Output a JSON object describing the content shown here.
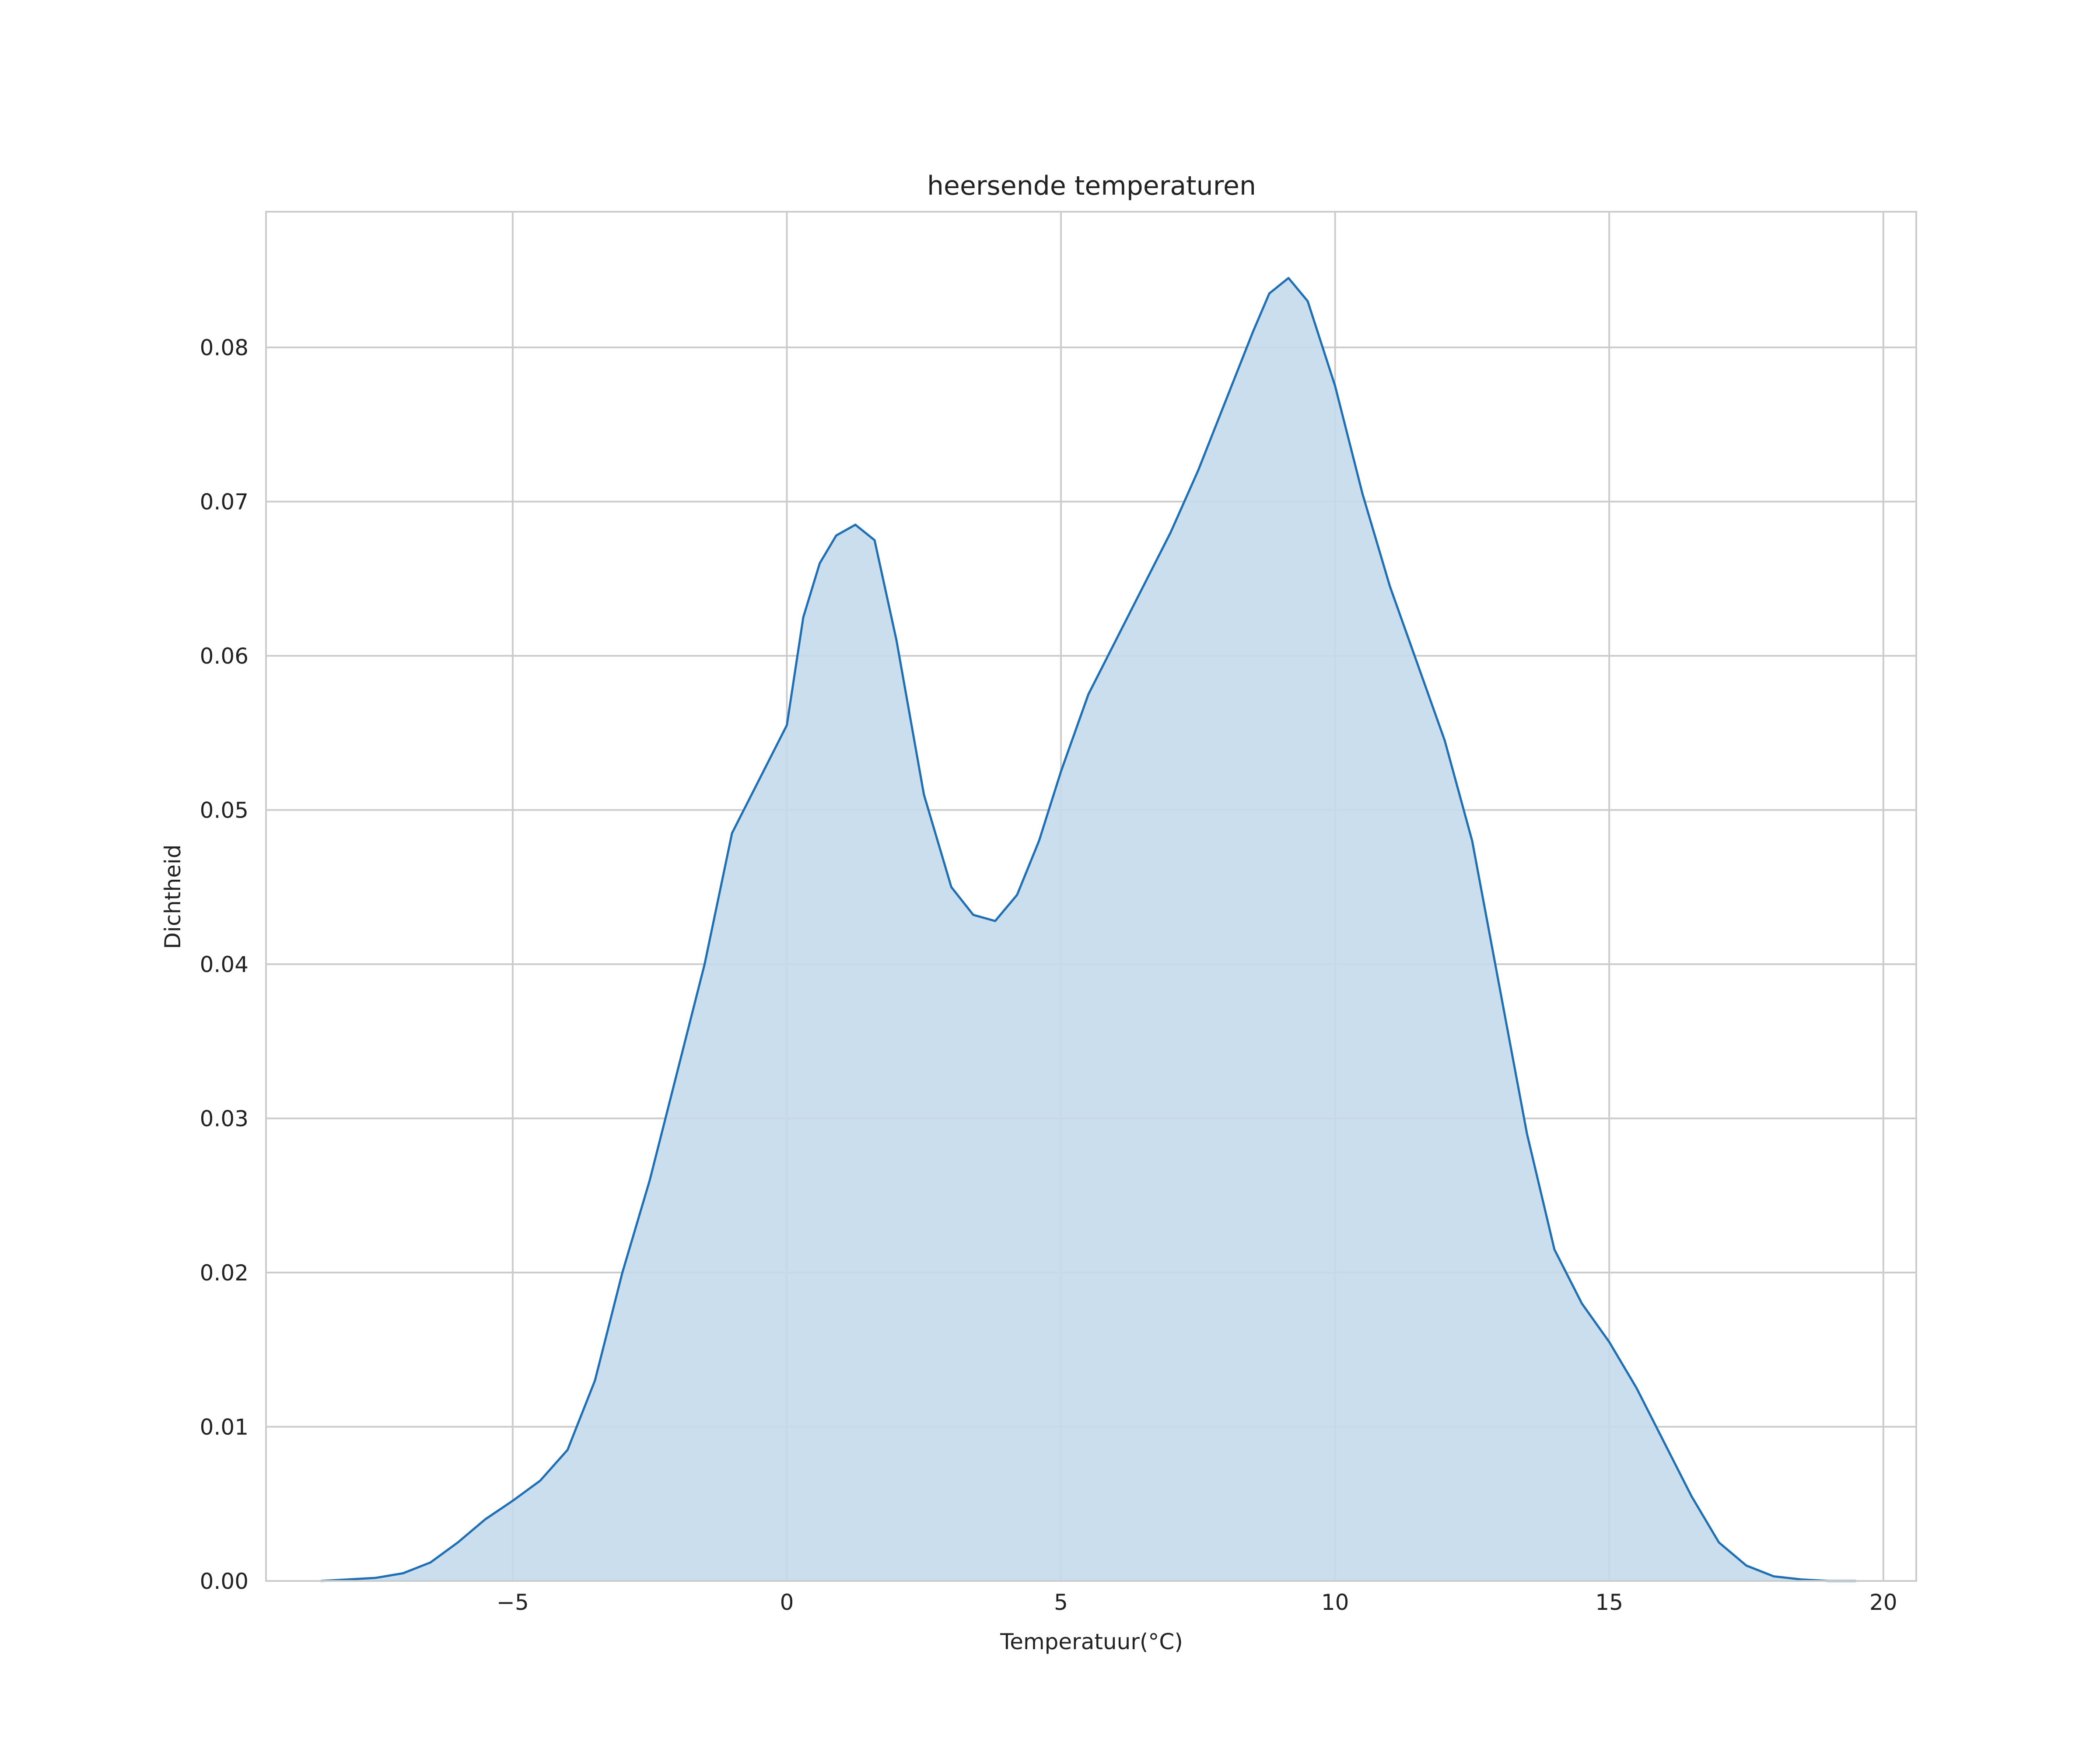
{
  "chart_data": {
    "type": "area",
    "title": "heersende temperaturen",
    "xlabel": "Temperatuur(°C)",
    "ylabel": "Dichtheid",
    "xlim": [
      -9.5,
      20.6
    ],
    "ylim": [
      0,
      0.0888
    ],
    "grid": true,
    "x_ticks": [
      -5,
      0,
      5,
      10,
      15,
      20
    ],
    "x_tick_labels": [
      "−5",
      "0",
      "5",
      "10",
      "15",
      "20"
    ],
    "y_ticks": [
      0,
      0.01,
      0.02,
      0.03,
      0.04,
      0.05,
      0.06,
      0.07,
      0.08
    ],
    "y_tick_labels": [
      "0.00",
      "0.01",
      "0.02",
      "0.03",
      "0.04",
      "0.05",
      "0.06",
      "0.07",
      "0.08"
    ],
    "series": [
      {
        "color_line": "#1f6fb5",
        "color_fill": "#c5daec",
        "x": [
          -8.5,
          -7.5,
          -7.0,
          -6.5,
          -6.0,
          -5.5,
          -5.0,
          -4.5,
          -4.0,
          -3.5,
          -3.0,
          -2.5,
          -2.0,
          -1.5,
          -1.0,
          -0.5,
          0.0,
          0.3,
          0.6,
          0.9,
          1.25,
          1.6,
          2.0,
          2.5,
          3.0,
          3.4,
          3.8,
          4.2,
          4.6,
          5.0,
          5.5,
          6.0,
          6.5,
          7.0,
          7.5,
          8.0,
          8.5,
          8.8,
          9.15,
          9.5,
          10.0,
          10.5,
          11.0,
          11.5,
          12.0,
          12.5,
          13.0,
          13.5,
          14.0,
          14.5,
          15.0,
          15.5,
          16.0,
          16.5,
          17.0,
          17.5,
          18.0,
          18.5,
          19.0,
          19.5
        ],
        "y": [
          0.0,
          0.0002,
          0.0005,
          0.0012,
          0.0025,
          0.004,
          0.0052,
          0.0065,
          0.0085,
          0.013,
          0.02,
          0.026,
          0.033,
          0.04,
          0.0485,
          0.052,
          0.0555,
          0.0625,
          0.066,
          0.0678,
          0.0685,
          0.0675,
          0.061,
          0.051,
          0.045,
          0.0432,
          0.0428,
          0.0445,
          0.048,
          0.0525,
          0.0575,
          0.061,
          0.0645,
          0.068,
          0.072,
          0.0765,
          0.081,
          0.0835,
          0.0845,
          0.083,
          0.0775,
          0.0705,
          0.0645,
          0.0595,
          0.0545,
          0.048,
          0.0385,
          0.029,
          0.0215,
          0.018,
          0.0155,
          0.0125,
          0.009,
          0.0055,
          0.0025,
          0.001,
          0.0003,
          0.0001,
          0.0,
          0.0
        ]
      }
    ]
  }
}
